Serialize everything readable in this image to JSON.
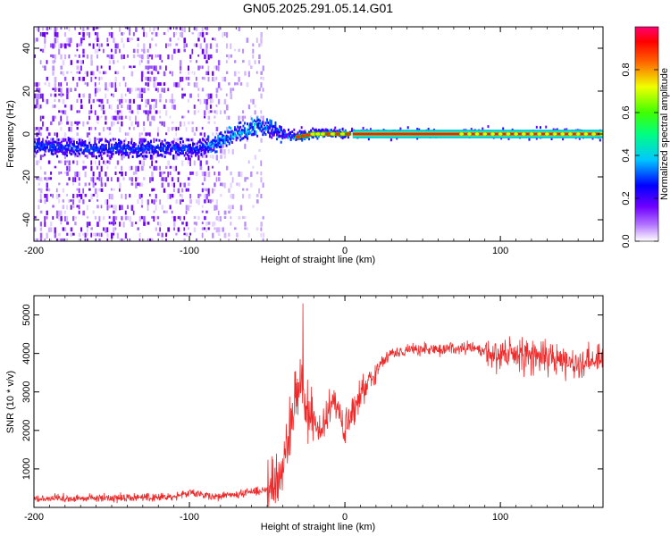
{
  "title": "GN05.2025.291.05.14.G01",
  "chart_data": [
    {
      "type": "heatmap",
      "xlabel": "Height of straight line (km)",
      "ylabel": "Frequency (Hz)",
      "xlim": [
        -200,
        166
      ],
      "ylim": [
        -50,
        50
      ],
      "x_ticks": [
        -200,
        -100,
        0,
        100
      ],
      "y_ticks": [
        -40,
        -20,
        0,
        20,
        40
      ],
      "colorbar": {
        "label": "Normalized spectral amplitude",
        "range": [
          0,
          1
        ],
        "ticks": [
          0.0,
          0.2,
          0.4,
          0.6,
          0.8
        ],
        "colormap": [
          "#ffffff",
          "#8a00ff",
          "#0000ff",
          "#00ffff",
          "#00ff00",
          "#ffff00",
          "#ff0000",
          "#ff0090"
        ]
      },
      "grid": false,
      "legend": "none",
      "features": {
        "noise_end_km": -52,
        "ridge": [
          {
            "x": -200,
            "y": -6
          },
          {
            "x": -150,
            "y": -7
          },
          {
            "x": -100,
            "y": -7
          },
          {
            "x": -85,
            "y": -5
          },
          {
            "x": -70,
            "y": 0
          },
          {
            "x": -55,
            "y": 4
          },
          {
            "x": -45,
            "y": 2
          },
          {
            "x": -35,
            "y": -2
          },
          {
            "x": -20,
            "y": 0
          },
          {
            "x": 0,
            "y": 0
          },
          {
            "x": 166,
            "y": 0
          }
        ],
        "strong_line_start_km": 5,
        "gap_km": [
          60,
          75
        ]
      }
    },
    {
      "type": "line",
      "xlabel": "Height of straight line (km)",
      "ylabel": "SNR (10 * v/v)",
      "xlim": [
        -200,
        166
      ],
      "ylim": [
        0,
        5500
      ],
      "x_ticks": [
        -200,
        -100,
        0,
        100
      ],
      "y_ticks": [
        1000,
        2000,
        3000,
        4000,
        5000
      ],
      "grid": false,
      "series": [
        {
          "color": "#ee2a2a",
          "x": [
            -200,
            -150,
            -110,
            -100,
            -85,
            -70,
            -60,
            -50,
            -43,
            -38,
            -33,
            -28,
            -24,
            -20,
            -15,
            -12,
            -8,
            -5,
            0,
            5,
            10,
            15,
            20,
            25,
            30,
            40,
            60,
            80,
            90,
            95,
            100,
            120,
            140,
            166
          ],
          "y": [
            230,
            250,
            280,
            380,
            280,
            330,
            400,
            470,
            700,
            1500,
            2700,
            3200,
            2400,
            2100,
            2000,
            2300,
            2800,
            2600,
            2000,
            2400,
            2900,
            3300,
            3600,
            3850,
            4000,
            4100,
            4100,
            4150,
            4050,
            4000,
            4000,
            3950,
            3800,
            3800
          ]
        }
      ]
    }
  ]
}
